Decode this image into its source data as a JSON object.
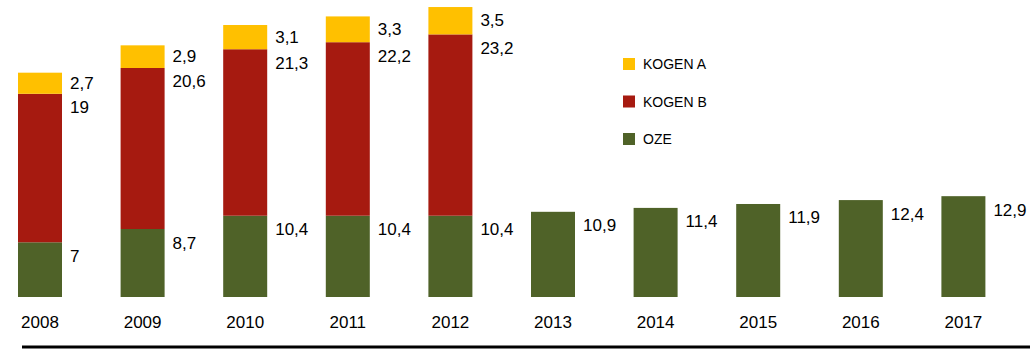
{
  "chart_data": {
    "type": "bar",
    "stacked": true,
    "data_labels": true,
    "tick_labels": "x",
    "legend": "right",
    "categories": [
      "2008",
      "2009",
      "2010",
      "2011",
      "2012",
      "2013",
      "2014",
      "2015",
      "2016",
      "2017"
    ],
    "ylim": [
      0,
      38
    ],
    "series": [
      {
        "name": "OZE",
        "color": "#4f6228",
        "values": [
          7,
          8.7,
          10.4,
          10.4,
          10.4,
          10.9,
          11.4,
          11.9,
          12.4,
          12.9
        ],
        "value_labels": [
          "7",
          "8,7",
          "10,4",
          "10,4",
          "10,4",
          "10,9",
          "11,4",
          "11,9",
          "12,4",
          "12,9"
        ]
      },
      {
        "name": "KOGEN B",
        "color": "#a61a10",
        "values": [
          19,
          20.6,
          21.3,
          22.2,
          23.2,
          null,
          null,
          null,
          null,
          null
        ],
        "value_labels": [
          "19",
          "20,6",
          "21,3",
          "22,2",
          "23,2",
          null,
          null,
          null,
          null,
          null
        ]
      },
      {
        "name": "KOGEN A",
        "color": "#ffc000",
        "values": [
          2.7,
          2.9,
          3.1,
          3.3,
          3.5,
          null,
          null,
          null,
          null,
          null
        ],
        "value_labels": [
          "2,7",
          "2,9",
          "3,1",
          "3,3",
          "3,5",
          null,
          null,
          null,
          null,
          null
        ]
      }
    ]
  }
}
